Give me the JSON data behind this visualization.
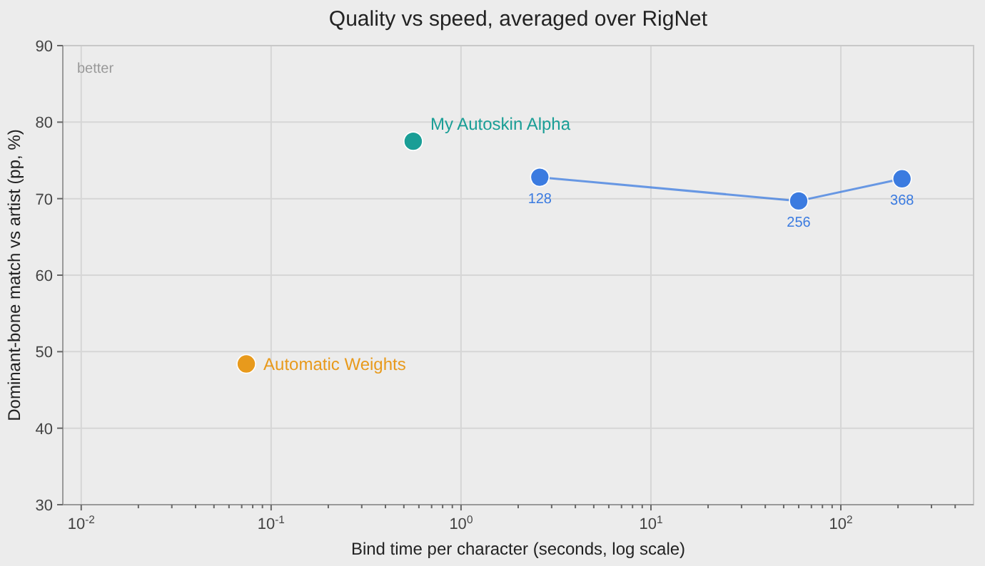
{
  "chart_data": {
    "type": "scatter",
    "title": "Quality vs speed, averaged over RigNet",
    "xlabel": "Bind time per character (seconds, log scale)",
    "ylabel": "Dominant-bone match vs artist (pp, %)",
    "log": "x",
    "grid": true,
    "marker": "circle",
    "xlim": [
      0.008,
      500
    ],
    "ylim": [
      30,
      90
    ],
    "yticks": [
      30,
      40,
      50,
      60,
      70,
      80,
      90
    ],
    "xticks": [
      {
        "value": 0.01,
        "label": "10$^{-2}$"
      },
      {
        "value": 0.02,
        "label": null
      },
      {
        "value": 0.03,
        "label": null
      },
      {
        "value": 0.04,
        "label": null
      },
      {
        "value": 0.05,
        "label": null
      },
      {
        "value": 0.06,
        "label": null
      },
      {
        "value": 0.07,
        "label": null
      },
      {
        "value": 0.08,
        "label": null
      },
      {
        "value": 0.09,
        "label": null
      },
      {
        "value": 0.1,
        "label": "10$^{-1}$"
      },
      {
        "value": 0.2,
        "label": null
      },
      {
        "value": 0.3,
        "label": null
      },
      {
        "value": 0.4,
        "label": null
      },
      {
        "value": 0.5,
        "label": null
      },
      {
        "value": 0.6,
        "label": null
      },
      {
        "value": 0.7,
        "label": null
      },
      {
        "value": 0.8,
        "label": null
      },
      {
        "value": 0.9,
        "label": null
      },
      {
        "value": 1,
        "label": "10$^{0}$"
      },
      {
        "value": 2,
        "label": null
      },
      {
        "value": 3,
        "label": null
      },
      {
        "value": 4,
        "label": null
      },
      {
        "value": 5,
        "label": null
      },
      {
        "value": 6,
        "label": null
      },
      {
        "value": 7,
        "label": null
      },
      {
        "value": 8,
        "label": null
      },
      {
        "value": 9,
        "label": null
      },
      {
        "value": 10,
        "label": "10$^{1}$"
      },
      {
        "value": 20,
        "label": null
      },
      {
        "value": 30,
        "label": null
      },
      {
        "value": 40,
        "label": null
      },
      {
        "value": 50,
        "label": null
      },
      {
        "value": 60,
        "label": null
      },
      {
        "value": 70,
        "label": null
      },
      {
        "value": 80,
        "label": null
      },
      {
        "value": 90,
        "label": null
      },
      {
        "value": 100,
        "label": "10$^{2}$"
      },
      {
        "value": 200,
        "label": null
      },
      {
        "value": 300,
        "label": null
      },
      {
        "value": 400,
        "label": null
      }
    ],
    "annotations": [
      "better",
      {
        "text": "128",
        "x": 2.6,
        "y": 72.8
      },
      {
        "text": "256",
        "x": 60,
        "y": 69.7
      },
      {
        "text": "368",
        "x": 210,
        "y": 72.6
      }
    ],
    "series": [
      {
        "name": "My Autoskin Alpha",
        "color": "#1a9e96",
        "x": [
          0.56
        ],
        "values": [
          77.5
        ]
      },
      {
        "type": "line",
        "color": "#3b7be0",
        "x": [
          2.6,
          60,
          210
        ],
        "values": [
          72.8,
          69.7,
          72.6
        ]
      },
      {
        "name": "Automatic Weights",
        "color": "#e89a1c",
        "x": [
          0.074
        ],
        "values": [
          48.4
        ]
      }
    ]
  }
}
